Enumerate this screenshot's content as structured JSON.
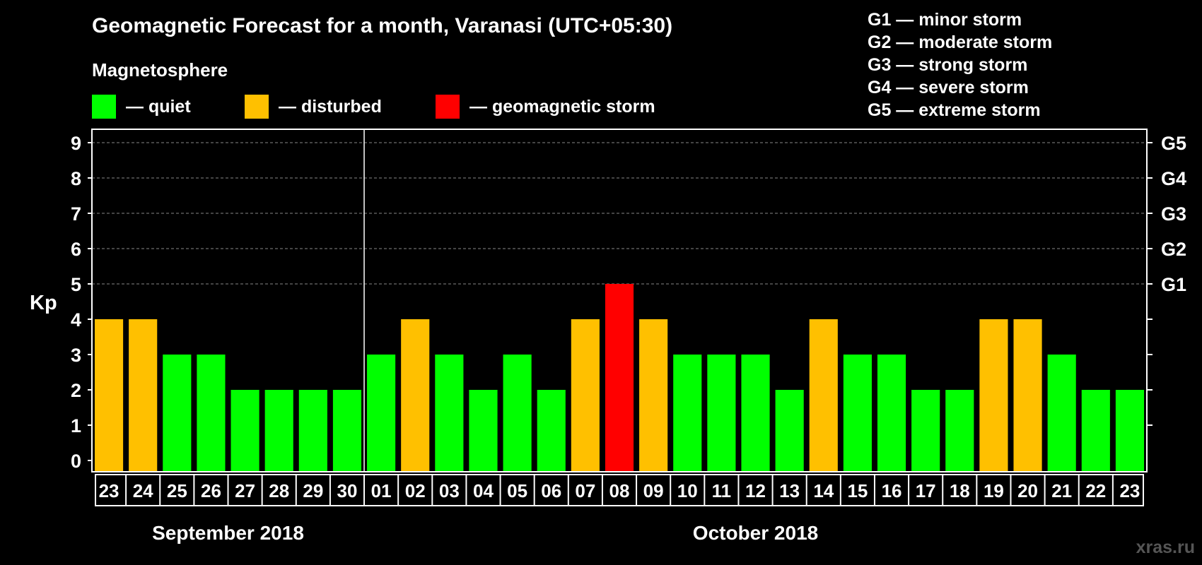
{
  "title": "Geomagnetic Forecast for a month, Varanasi (UTC+05:30)",
  "subtitle": "Magnetosphere",
  "colors": {
    "quiet": "#00ff00",
    "disturbed": "#ffc000",
    "storm": "#ff0000",
    "background": "#000000",
    "grid": "#888888"
  },
  "legend": [
    {
      "key": "quiet",
      "label": "— quiet"
    },
    {
      "key": "disturbed",
      "label": "— disturbed"
    },
    {
      "key": "storm",
      "label": "— geomagnetic storm"
    }
  ],
  "storm_scale": [
    "G1 — minor storm",
    "G2 — moderate storm",
    "G3 — strong storm",
    "G4 — severe storm",
    "G5 — extreme storm"
  ],
  "watermark": "xras.ru",
  "chart_data": {
    "type": "bar",
    "ylabel": "Kp",
    "ylim": [
      0,
      9
    ],
    "yticks": [
      0,
      1,
      2,
      3,
      4,
      5,
      6,
      7,
      8,
      9
    ],
    "right_ticks": [
      {
        "value": 5,
        "label": "G1"
      },
      {
        "value": 6,
        "label": "G2"
      },
      {
        "value": 7,
        "label": "G3"
      },
      {
        "value": 8,
        "label": "G4"
      },
      {
        "value": 9,
        "label": "G5"
      }
    ],
    "grid": true,
    "categories": [
      "23",
      "24",
      "25",
      "26",
      "27",
      "28",
      "29",
      "30",
      "01",
      "02",
      "03",
      "04",
      "05",
      "06",
      "07",
      "08",
      "09",
      "10",
      "11",
      "12",
      "13",
      "14",
      "15",
      "16",
      "17",
      "18",
      "19",
      "20",
      "21",
      "22",
      "23"
    ],
    "values": [
      4,
      4,
      3,
      3,
      2,
      2,
      2,
      2,
      3,
      4,
      3,
      2,
      3,
      2,
      4,
      5,
      4,
      3,
      3,
      3,
      2,
      4,
      3,
      3,
      2,
      2,
      4,
      4,
      3,
      2,
      2
    ],
    "levels": [
      "disturbed",
      "disturbed",
      "quiet",
      "quiet",
      "quiet",
      "quiet",
      "quiet",
      "quiet",
      "quiet",
      "disturbed",
      "quiet",
      "quiet",
      "quiet",
      "quiet",
      "disturbed",
      "storm",
      "disturbed",
      "quiet",
      "quiet",
      "quiet",
      "quiet",
      "disturbed",
      "quiet",
      "quiet",
      "quiet",
      "quiet",
      "disturbed",
      "disturbed",
      "quiet",
      "quiet",
      "quiet"
    ],
    "months": [
      {
        "label": "September 2018",
        "start": 0,
        "end": 7
      },
      {
        "label": "October 2018",
        "start": 8,
        "end": 30
      }
    ]
  }
}
